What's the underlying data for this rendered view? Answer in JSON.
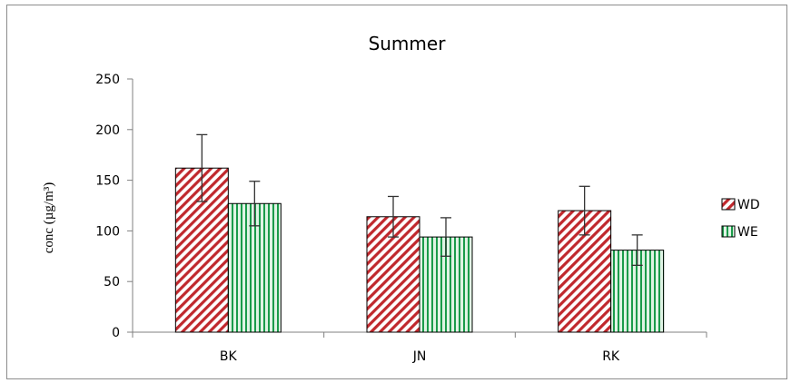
{
  "chart_data": {
    "type": "bar",
    "title": "Summer",
    "xlabel": "",
    "ylabel": "conc (µg/m³)",
    "ylim": [
      0,
      250
    ],
    "yticks": [
      0,
      50,
      100,
      150,
      200,
      250
    ],
    "categories": [
      "BK",
      "JN",
      "RK"
    ],
    "series": [
      {
        "name": "WD",
        "values": [
          162,
          114,
          120
        ],
        "errors": [
          33,
          20,
          24
        ],
        "color": "#c0282d",
        "fill": "#ffffff",
        "pattern": "diagonal-hatch"
      },
      {
        "name": "WE",
        "values": [
          127,
          94,
          81
        ],
        "errors": [
          22,
          19,
          15
        ],
        "color": "#1a9b4a",
        "fill": "#dff3e4",
        "pattern": "vertical-stripes"
      }
    ],
    "grid": false,
    "legend_position": "right"
  }
}
